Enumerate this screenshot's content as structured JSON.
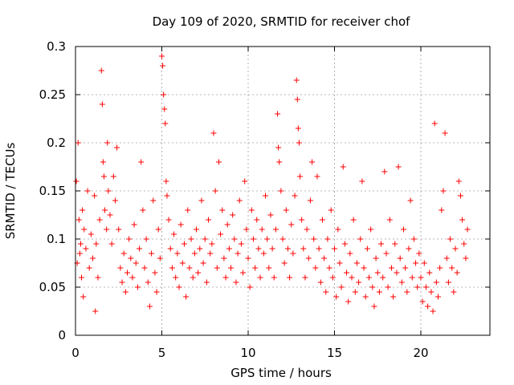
{
  "chart_data": {
    "type": "scatter",
    "title": "Day 109 of 2020, SRMTID for receiver chof",
    "xlabel": "GPS time / hours",
    "ylabel": "SRMTID / TECUs",
    "xlim": [
      0,
      24
    ],
    "ylim": [
      0,
      0.3
    ],
    "xticks": [
      0,
      5,
      10,
      15,
      20
    ],
    "xtick_labels": [
      "0",
      "5",
      "10",
      "15",
      "20"
    ],
    "yticks": [
      0,
      0.05,
      0.1,
      0.15,
      0.2,
      0.25,
      0.3
    ],
    "ytick_labels": [
      "0",
      "0.05",
      "0.1",
      "0.15",
      "0.2",
      "0.25",
      "0.3"
    ],
    "grid": true,
    "marker": "+",
    "color": "#ff0000",
    "series": [
      {
        "name": "SRMTID",
        "points": [
          [
            0.05,
            0.16
          ],
          [
            0.1,
            0.075
          ],
          [
            0.15,
            0.2
          ],
          [
            0.2,
            0.12
          ],
          [
            0.25,
            0.085
          ],
          [
            0.3,
            0.095
          ],
          [
            0.35,
            0.06
          ],
          [
            0.4,
            0.13
          ],
          [
            0.45,
            0.04
          ],
          [
            0.5,
            0.11
          ],
          [
            0.6,
            0.09
          ],
          [
            0.7,
            0.15
          ],
          [
            0.8,
            0.07
          ],
          [
            0.9,
            0.105
          ],
          [
            1.0,
            0.08
          ],
          [
            1.1,
            0.145
          ],
          [
            1.15,
            0.025
          ],
          [
            1.2,
            0.095
          ],
          [
            1.3,
            0.06
          ],
          [
            1.4,
            0.12
          ],
          [
            1.5,
            0.275
          ],
          [
            1.55,
            0.24
          ],
          [
            1.6,
            0.18
          ],
          [
            1.65,
            0.165
          ],
          [
            1.7,
            0.13
          ],
          [
            1.8,
            0.11
          ],
          [
            1.85,
            0.2
          ],
          [
            1.9,
            0.15
          ],
          [
            2.0,
            0.125
          ],
          [
            2.1,
            0.095
          ],
          [
            2.2,
            0.165
          ],
          [
            2.3,
            0.14
          ],
          [
            2.4,
            0.195
          ],
          [
            2.5,
            0.11
          ],
          [
            2.6,
            0.07
          ],
          [
            2.7,
            0.055
          ],
          [
            2.8,
            0.085
          ],
          [
            2.9,
            0.045
          ],
          [
            3.0,
            0.065
          ],
          [
            3.1,
            0.1
          ],
          [
            3.2,
            0.08
          ],
          [
            3.3,
            0.06
          ],
          [
            3.4,
            0.115
          ],
          [
            3.5,
            0.075
          ],
          [
            3.6,
            0.05
          ],
          [
            3.7,
            0.09
          ],
          [
            3.8,
            0.18
          ],
          [
            3.9,
            0.13
          ],
          [
            4.0,
            0.07
          ],
          [
            4.1,
            0.1
          ],
          [
            4.2,
            0.055
          ],
          [
            4.3,
            0.03
          ],
          [
            4.4,
            0.085
          ],
          [
            4.5,
            0.14
          ],
          [
            4.6,
            0.065
          ],
          [
            4.7,
            0.045
          ],
          [
            4.8,
            0.11
          ],
          [
            4.9,
            0.08
          ],
          [
            5.0,
            0.29
          ],
          [
            5.05,
            0.28
          ],
          [
            5.1,
            0.25
          ],
          [
            5.15,
            0.235
          ],
          [
            5.2,
            0.22
          ],
          [
            5.25,
            0.16
          ],
          [
            5.3,
            0.145
          ],
          [
            5.4,
            0.12
          ],
          [
            5.5,
            0.09
          ],
          [
            5.6,
            0.07
          ],
          [
            5.7,
            0.105
          ],
          [
            5.8,
            0.06
          ],
          [
            5.9,
            0.085
          ],
          [
            6.0,
            0.05
          ],
          [
            6.1,
            0.115
          ],
          [
            6.2,
            0.075
          ],
          [
            6.3,
            0.095
          ],
          [
            6.4,
            0.04
          ],
          [
            6.5,
            0.13
          ],
          [
            6.6,
            0.07
          ],
          [
            6.7,
            0.1
          ],
          [
            6.8,
            0.06
          ],
          [
            6.9,
            0.085
          ],
          [
            7.0,
            0.11
          ],
          [
            7.1,
            0.065
          ],
          [
            7.2,
            0.09
          ],
          [
            7.3,
            0.14
          ],
          [
            7.4,
            0.075
          ],
          [
            7.5,
            0.1
          ],
          [
            7.6,
            0.055
          ],
          [
            7.7,
            0.12
          ],
          [
            7.8,
            0.085
          ],
          [
            7.9,
            0.095
          ],
          [
            8.0,
            0.21
          ],
          [
            8.1,
            0.15
          ],
          [
            8.2,
            0.07
          ],
          [
            8.3,
            0.18
          ],
          [
            8.4,
            0.105
          ],
          [
            8.5,
            0.13
          ],
          [
            8.6,
            0.08
          ],
          [
            8.7,
            0.06
          ],
          [
            8.8,
            0.115
          ],
          [
            8.9,
            0.09
          ],
          [
            9.0,
            0.07
          ],
          [
            9.1,
            0.125
          ],
          [
            9.2,
            0.1
          ],
          [
            9.3,
            0.055
          ],
          [
            9.4,
            0.085
          ],
          [
            9.5,
            0.14
          ],
          [
            9.6,
            0.095
          ],
          [
            9.7,
            0.065
          ],
          [
            9.8,
            0.16
          ],
          [
            9.9,
            0.11
          ],
          [
            10.0,
            0.08
          ],
          [
            10.1,
            0.05
          ],
          [
            10.2,
            0.13
          ],
          [
            10.3,
            0.1
          ],
          [
            10.4,
            0.07
          ],
          [
            10.5,
            0.12
          ],
          [
            10.6,
            0.09
          ],
          [
            10.7,
            0.06
          ],
          [
            10.8,
            0.11
          ],
          [
            10.9,
            0.085
          ],
          [
            11.0,
            0.145
          ],
          [
            11.1,
            0.1
          ],
          [
            11.2,
            0.07
          ],
          [
            11.3,
            0.125
          ],
          [
            11.4,
            0.09
          ],
          [
            11.5,
            0.06
          ],
          [
            11.6,
            0.11
          ],
          [
            11.7,
            0.23
          ],
          [
            11.75,
            0.195
          ],
          [
            11.8,
            0.18
          ],
          [
            11.9,
            0.15
          ],
          [
            12.0,
            0.1
          ],
          [
            12.1,
            0.075
          ],
          [
            12.2,
            0.13
          ],
          [
            12.3,
            0.09
          ],
          [
            12.4,
            0.06
          ],
          [
            12.5,
            0.115
          ],
          [
            12.6,
            0.085
          ],
          [
            12.7,
            0.145
          ],
          [
            12.8,
            0.265
          ],
          [
            12.85,
            0.245
          ],
          [
            12.9,
            0.215
          ],
          [
            12.95,
            0.2
          ],
          [
            13.0,
            0.165
          ],
          [
            13.1,
            0.12
          ],
          [
            13.2,
            0.09
          ],
          [
            13.3,
            0.06
          ],
          [
            13.4,
            0.11
          ],
          [
            13.5,
            0.08
          ],
          [
            13.6,
            0.14
          ],
          [
            13.7,
            0.18
          ],
          [
            13.8,
            0.1
          ],
          [
            13.9,
            0.07
          ],
          [
            14.0,
            0.165
          ],
          [
            14.1,
            0.09
          ],
          [
            14.2,
            0.055
          ],
          [
            14.3,
            0.12
          ],
          [
            14.4,
            0.08
          ],
          [
            14.5,
            0.045
          ],
          [
            14.6,
            0.1
          ],
          [
            14.7,
            0.07
          ],
          [
            14.8,
            0.13
          ],
          [
            14.9,
            0.06
          ],
          [
            15.0,
            0.09
          ],
          [
            15.1,
            0.04
          ],
          [
            15.2,
            0.11
          ],
          [
            15.3,
            0.075
          ],
          [
            15.4,
            0.05
          ],
          [
            15.5,
            0.175
          ],
          [
            15.6,
            0.095
          ],
          [
            15.7,
            0.065
          ],
          [
            15.8,
            0.035
          ],
          [
            15.9,
            0.085
          ],
          [
            16.0,
            0.06
          ],
          [
            16.1,
            0.12
          ],
          [
            16.2,
            0.045
          ],
          [
            16.3,
            0.075
          ],
          [
            16.4,
            0.055
          ],
          [
            16.5,
            0.1
          ],
          [
            16.6,
            0.16
          ],
          [
            16.7,
            0.07
          ],
          [
            16.8,
            0.04
          ],
          [
            16.9,
            0.09
          ],
          [
            17.0,
            0.06
          ],
          [
            17.1,
            0.11
          ],
          [
            17.2,
            0.05
          ],
          [
            17.3,
            0.03
          ],
          [
            17.4,
            0.08
          ],
          [
            17.5,
            0.065
          ],
          [
            17.6,
            0.045
          ],
          [
            17.7,
            0.095
          ],
          [
            17.8,
            0.06
          ],
          [
            17.9,
            0.17
          ],
          [
            18.0,
            0.085
          ],
          [
            18.1,
            0.05
          ],
          [
            18.2,
            0.12
          ],
          [
            18.3,
            0.07
          ],
          [
            18.4,
            0.04
          ],
          [
            18.5,
            0.095
          ],
          [
            18.6,
            0.065
          ],
          [
            18.7,
            0.175
          ],
          [
            18.8,
            0.08
          ],
          [
            18.9,
            0.055
          ],
          [
            19.0,
            0.11
          ],
          [
            19.1,
            0.07
          ],
          [
            19.2,
            0.045
          ],
          [
            19.3,
            0.09
          ],
          [
            19.4,
            0.14
          ],
          [
            19.5,
            0.06
          ],
          [
            19.6,
            0.1
          ],
          [
            19.7,
            0.075
          ],
          [
            19.8,
            0.05
          ],
          [
            19.9,
            0.085
          ],
          [
            20.0,
            0.06
          ],
          [
            20.1,
            0.035
          ],
          [
            20.2,
            0.075
          ],
          [
            20.3,
            0.05
          ],
          [
            20.4,
            0.03
          ],
          [
            20.5,
            0.065
          ],
          [
            20.6,
            0.045
          ],
          [
            20.7,
            0.025
          ],
          [
            20.8,
            0.22
          ],
          [
            20.9,
            0.055
          ],
          [
            21.0,
            0.04
          ],
          [
            21.1,
            0.07
          ],
          [
            21.2,
            0.13
          ],
          [
            21.3,
            0.15
          ],
          [
            21.4,
            0.21
          ],
          [
            21.5,
            0.08
          ],
          [
            21.6,
            0.055
          ],
          [
            21.7,
            0.1
          ],
          [
            21.8,
            0.07
          ],
          [
            21.9,
            0.045
          ],
          [
            22.0,
            0.09
          ],
          [
            22.1,
            0.065
          ],
          [
            22.2,
            0.16
          ],
          [
            22.3,
            0.145
          ],
          [
            22.4,
            0.12
          ],
          [
            22.5,
            0.095
          ],
          [
            22.6,
            0.08
          ],
          [
            22.7,
            0.11
          ]
        ]
      }
    ]
  }
}
